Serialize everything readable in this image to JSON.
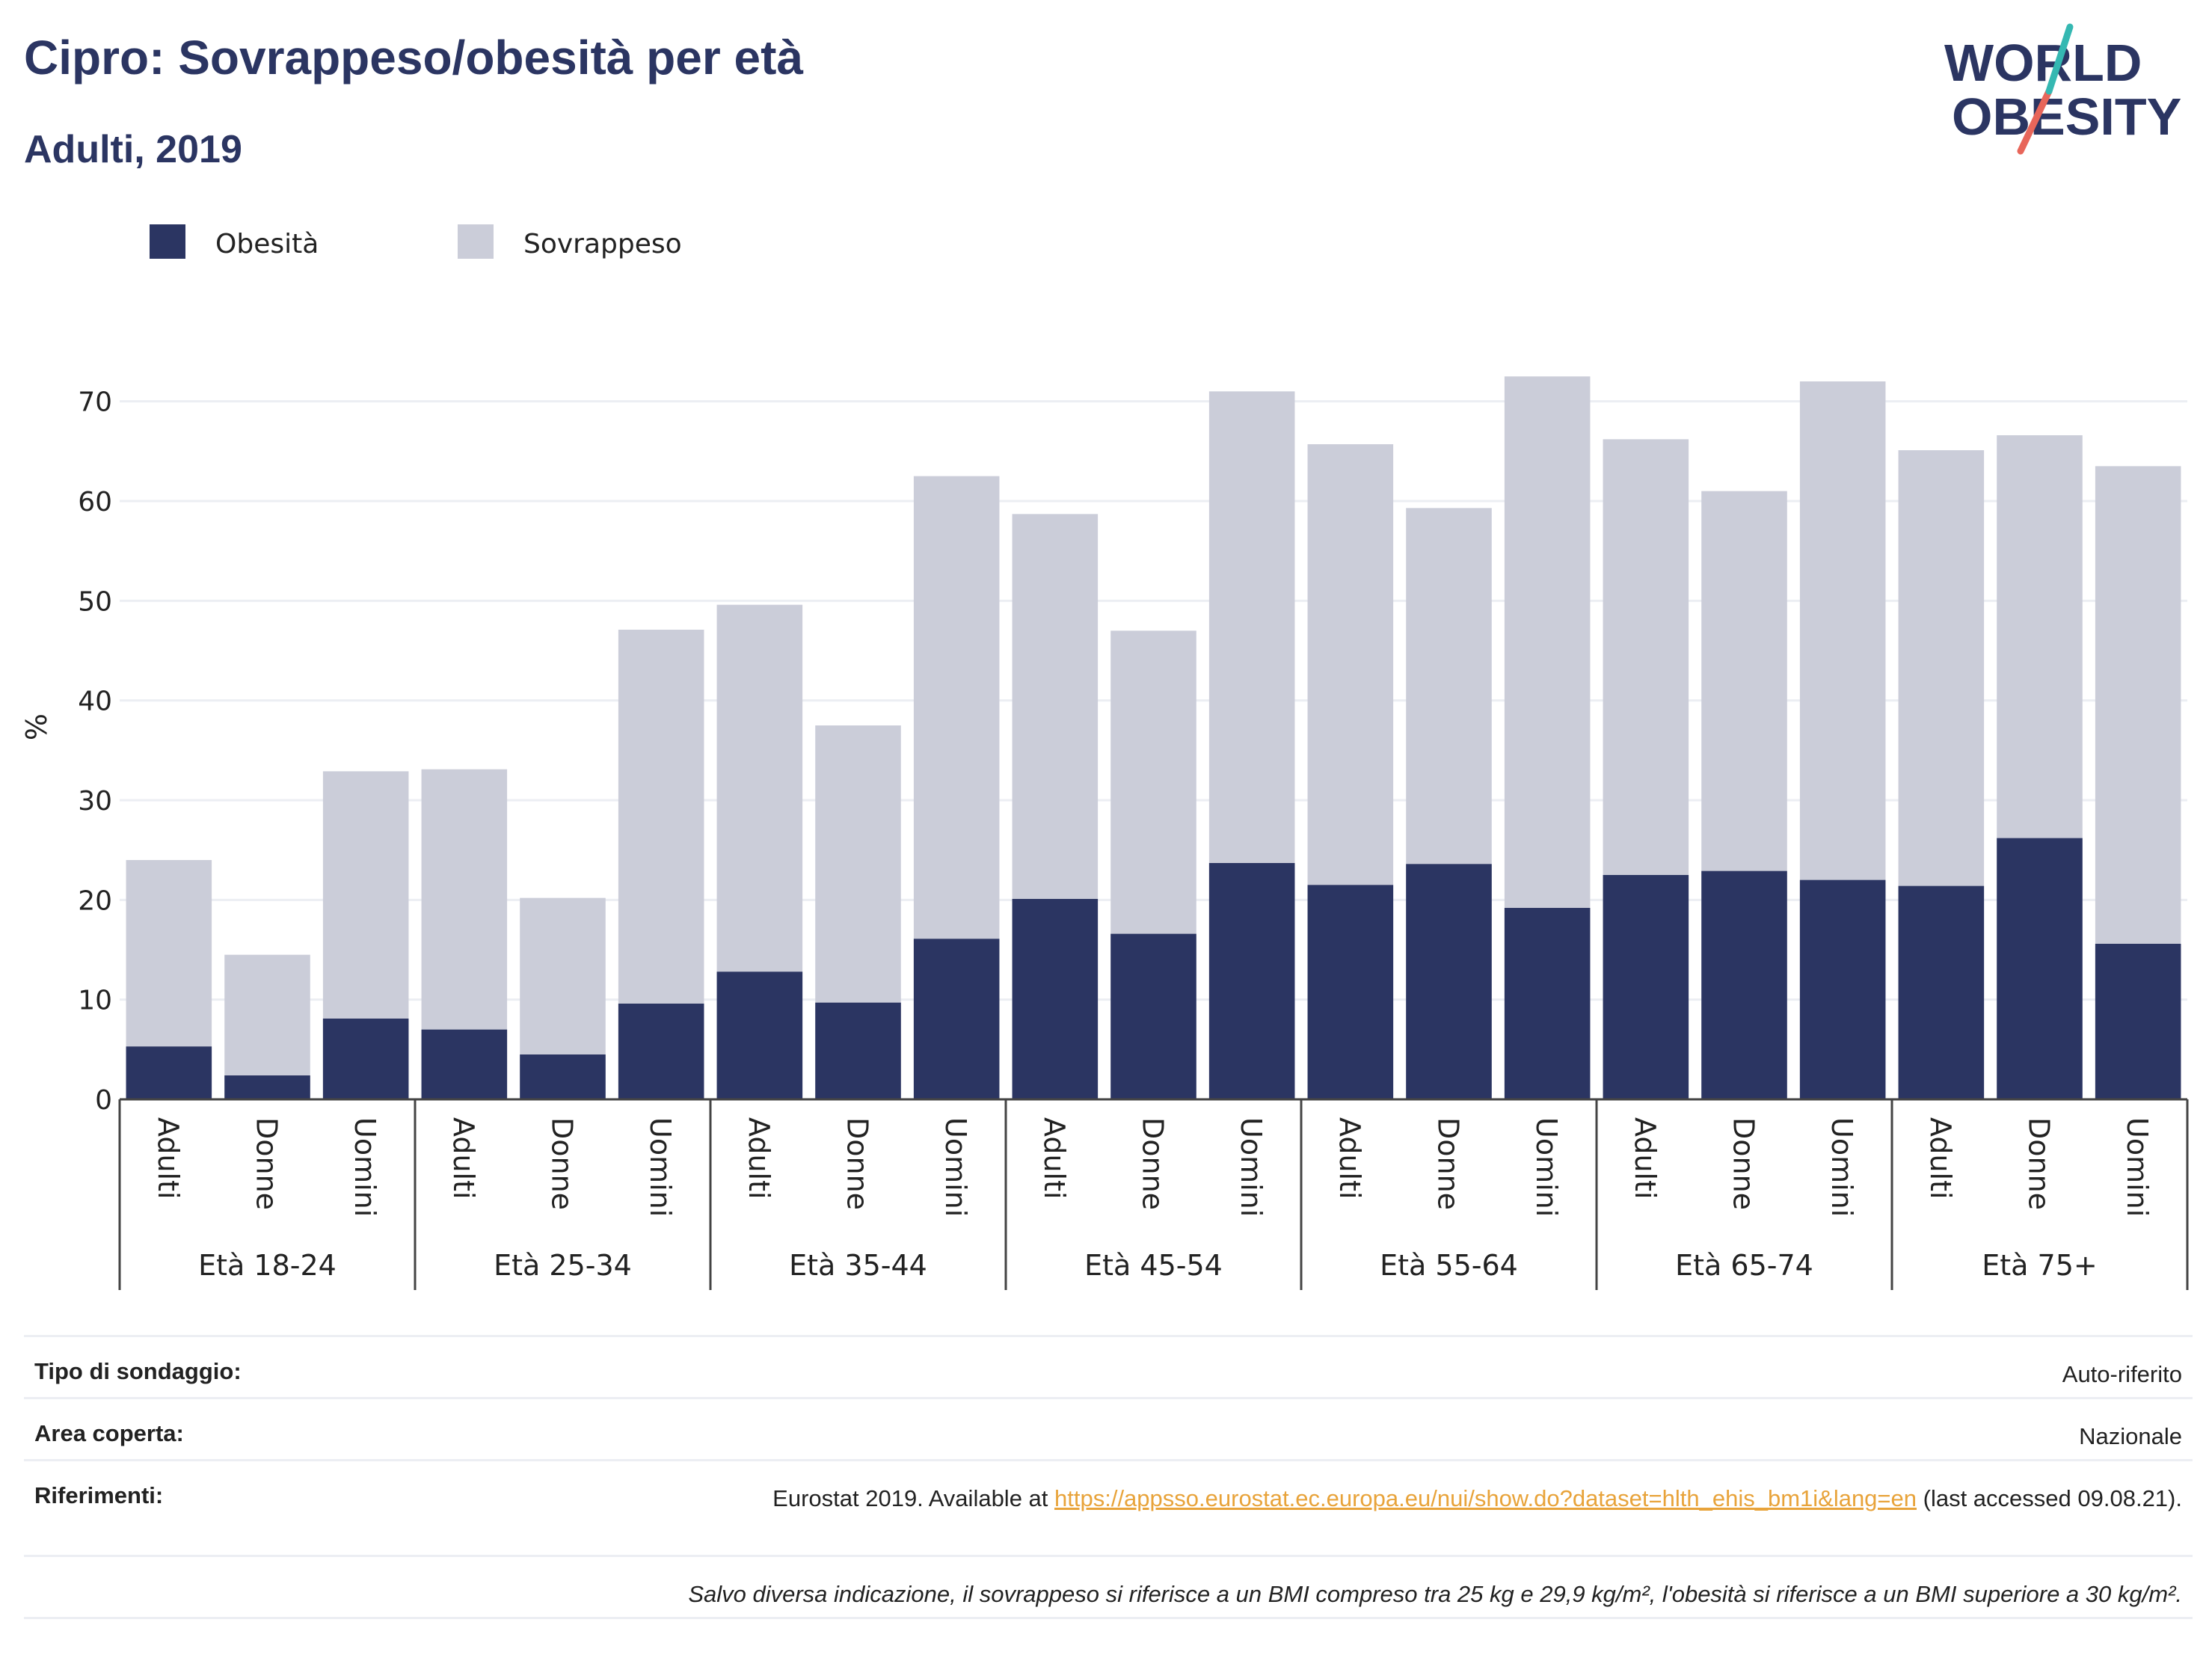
{
  "title": "Cipro: Sovrappeso/obesità per età",
  "subtitle": "Adulti, 2019",
  "logo": {
    "line1": "WORLD",
    "line2": "OBESITY",
    "accent_teal": "#35b8b2",
    "accent_red": "#e8665a"
  },
  "colors": {
    "obesity": "#2b3562",
    "overweight": "#cbcdd9",
    "text_dark": "#2b3562",
    "grid": "#eceef3"
  },
  "chart_data": {
    "type": "bar",
    "stacked": true,
    "ylabel": "%",
    "ylim": [
      0,
      75
    ],
    "yticks": [
      0,
      10,
      20,
      30,
      40,
      50,
      60,
      70
    ],
    "grid": true,
    "legend_position": "top-left",
    "series": [
      {
        "name": "Obesità",
        "color": "#2b3562"
      },
      {
        "name": "Sovrappeso",
        "color": "#cbcdd9"
      }
    ],
    "groups": [
      {
        "label": "Età 18-24",
        "bars": [
          {
            "category": "Adulti",
            "obesity": 5.3,
            "total": 24.0
          },
          {
            "category": "Donne",
            "obesity": 2.4,
            "total": 14.5
          },
          {
            "category": "Uomini",
            "obesity": 8.1,
            "total": 32.9
          }
        ]
      },
      {
        "label": "Età 25-34",
        "bars": [
          {
            "category": "Adulti",
            "obesity": 7.0,
            "total": 33.1
          },
          {
            "category": "Donne",
            "obesity": 4.5,
            "total": 20.2
          },
          {
            "category": "Uomini",
            "obesity": 9.6,
            "total": 47.1
          }
        ]
      },
      {
        "label": "Età 35-44",
        "bars": [
          {
            "category": "Adulti",
            "obesity": 12.8,
            "total": 49.6
          },
          {
            "category": "Donne",
            "obesity": 9.7,
            "total": 37.5
          },
          {
            "category": "Uomini",
            "obesity": 16.1,
            "total": 62.5
          }
        ]
      },
      {
        "label": "Età 45-54",
        "bars": [
          {
            "category": "Adulti",
            "obesity": 20.1,
            "total": 58.7
          },
          {
            "category": "Donne",
            "obesity": 16.6,
            "total": 47.0
          },
          {
            "category": "Uomini",
            "obesity": 23.7,
            "total": 71.0
          }
        ]
      },
      {
        "label": "Età 55-64",
        "bars": [
          {
            "category": "Adulti",
            "obesity": 21.5,
            "total": 65.7
          },
          {
            "category": "Donne",
            "obesity": 23.6,
            "total": 59.3
          },
          {
            "category": "Uomini",
            "obesity": 19.2,
            "total": 72.5
          }
        ]
      },
      {
        "label": "Età 65-74",
        "bars": [
          {
            "category": "Adulti",
            "obesity": 22.5,
            "total": 66.2
          },
          {
            "category": "Donne",
            "obesity": 22.9,
            "total": 61.0
          },
          {
            "category": "Uomini",
            "obesity": 22.0,
            "total": 72.0
          }
        ]
      },
      {
        "label": "Età 75+",
        "bars": [
          {
            "category": "Adulti",
            "obesity": 21.4,
            "total": 65.1
          },
          {
            "category": "Donne",
            "obesity": 26.2,
            "total": 66.6
          },
          {
            "category": "Uomini",
            "obesity": 15.6,
            "total": 63.5
          }
        ]
      }
    ]
  },
  "meta": {
    "survey_label": "Tipo di sondaggio:",
    "survey_value": "Auto-riferito",
    "area_label": "Area coperta:",
    "area_value": "Nazionale",
    "refs_label": "Riferimenti:",
    "refs_prefix": "Eurostat 2019. Available at ",
    "refs_link": "https://appsso.eurostat.ec.europa.eu/nui/show.do?dataset=hlth_ehis_bm1i&lang=en",
    "refs_suffix": " (last accessed 09.08.21).",
    "note": "Salvo diversa indicazione, il sovrappeso si riferisce a un BMI compreso tra 25 kg e 29,9 kg/m², l'obesità si riferisce a un BMI superiore a 30 kg/m²."
  }
}
